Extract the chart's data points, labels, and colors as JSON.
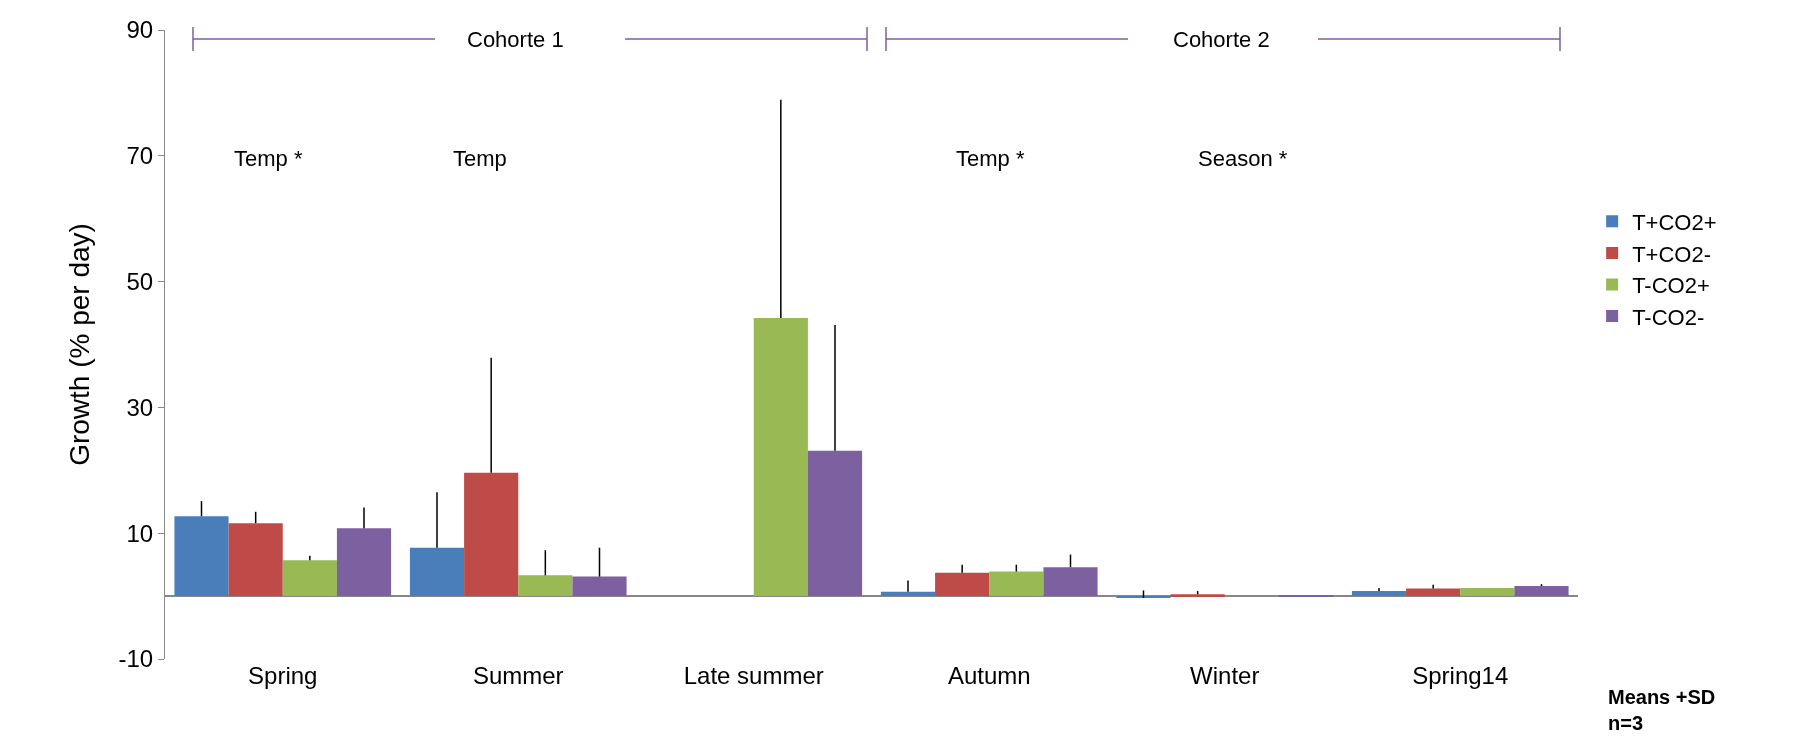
{
  "chart_data": {
    "type": "bar",
    "ylabel": "Growth (% per day)",
    "categories": [
      "Spring",
      "Summer",
      "Late summer",
      "Autumn",
      "Winter",
      "Spring14"
    ],
    "series": [
      {
        "name": "T+CO2+",
        "color": "#4a7ebb",
        "values": [
          12.7,
          7.7,
          0,
          0.7,
          -0.3,
          0.8
        ],
        "errors": [
          [
            12.7,
            15.1
          ],
          [
            7.7,
            16.5
          ],
          null,
          [
            0.7,
            2.5
          ],
          [
            -0.3,
            0.9
          ],
          [
            0.8,
            1.3
          ]
        ]
      },
      {
        "name": "T+CO2-",
        "color": "#be4b48",
        "values": [
          11.6,
          19.6,
          0,
          3.7,
          0.3,
          1.2
        ],
        "errors": [
          [
            11.6,
            13.4
          ],
          [
            19.6,
            37.9
          ],
          null,
          [
            3.7,
            5.0
          ],
          [
            0.3,
            0.8
          ],
          [
            1.2,
            1.8
          ]
        ]
      },
      {
        "name": "T-CO2+",
        "color": "#98b954",
        "values": [
          5.7,
          3.3,
          44.2,
          3.9,
          0,
          1.3
        ],
        "errors": [
          [
            5.7,
            6.4
          ],
          [
            3.3,
            7.3
          ],
          [
            44.2,
            78.9
          ],
          [
            3.9,
            5.0
          ],
          null,
          null
        ]
      },
      {
        "name": "T-CO2-",
        "color": "#7d60a0",
        "values": [
          10.8,
          3.1,
          23.1,
          4.6,
          0.1,
          1.6
        ],
        "errors": [
          [
            10.8,
            14.1
          ],
          [
            3.1,
            7.7
          ],
          [
            23.1,
            43.1
          ],
          [
            4.6,
            6.6
          ],
          null,
          [
            1.6,
            1.9
          ]
        ]
      }
    ],
    "ylim": [
      -10,
      90
    ],
    "yticks": [
      -10,
      10,
      30,
      50,
      70,
      90
    ],
    "grid": false,
    "legend": "right",
    "annotations": [
      "Cohorte 1",
      "Cohorte 2",
      "Temp *",
      "Temp",
      "Temp *",
      "Season *",
      "Means +SD\nn=3"
    ]
  }
}
